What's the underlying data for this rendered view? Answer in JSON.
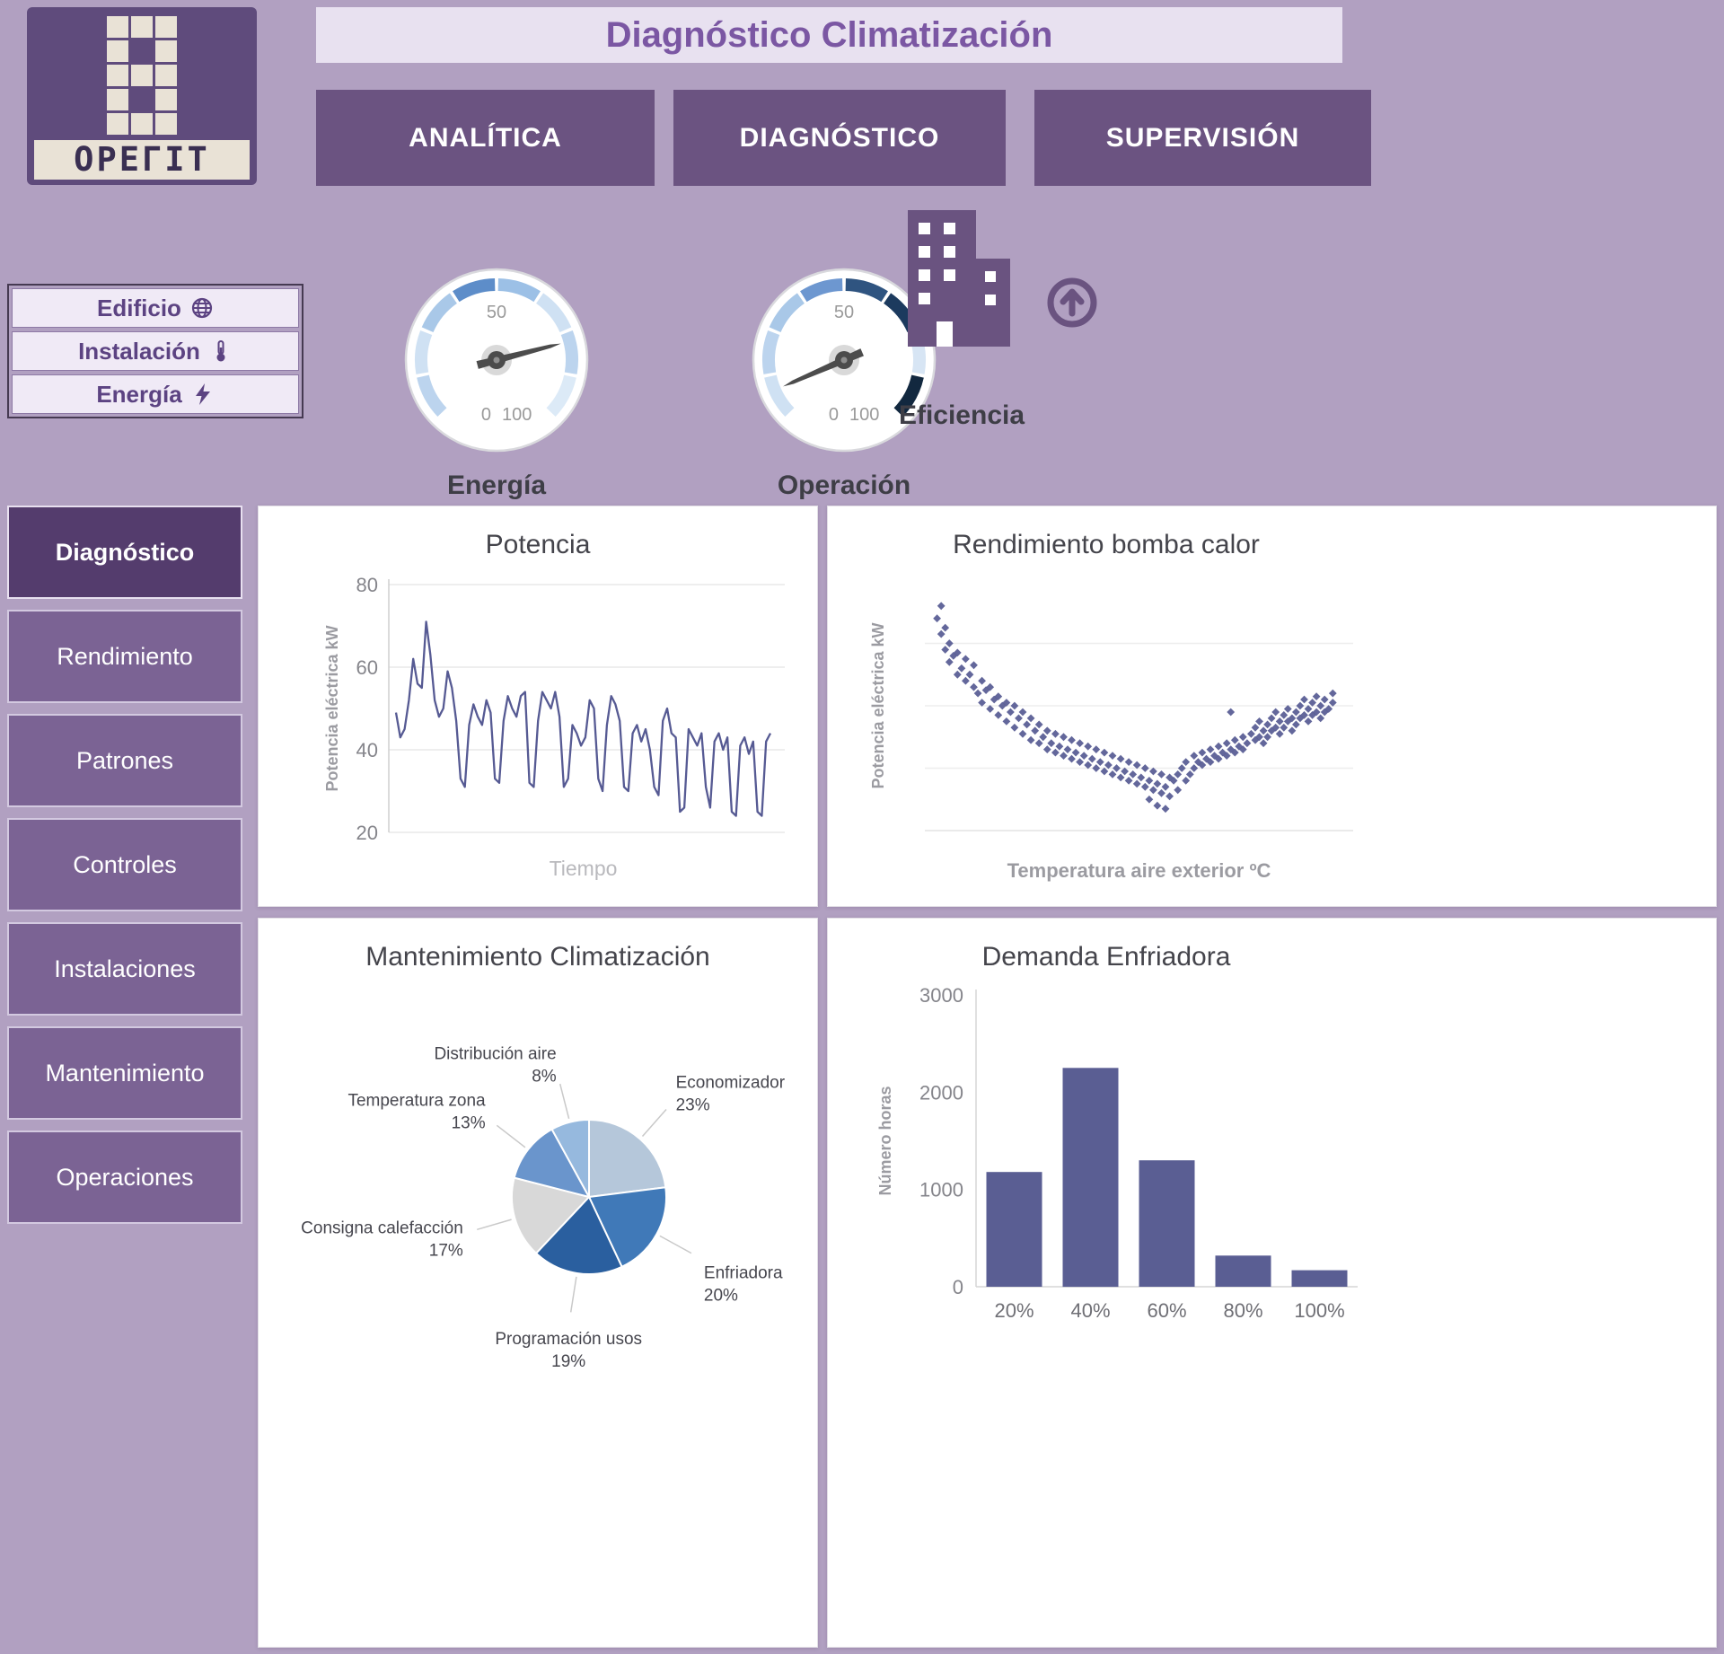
{
  "header": {
    "logo_text": "OPEΓIT",
    "title": "Diagnóstico Climatización",
    "tabs": [
      "ANALÍTICA",
      "DIAGNÓSTICO",
      "SUPERVISIÓN"
    ]
  },
  "filters": {
    "items": [
      {
        "label": "Edificio",
        "icon": "globe-icon"
      },
      {
        "label": "Instalación",
        "icon": "thermometer-icon"
      },
      {
        "label": "Energía",
        "icon": "bolt-icon"
      }
    ]
  },
  "gauges": [
    {
      "label": "Energía",
      "min": 0,
      "mid": 50,
      "max": 100,
      "value": 78,
      "segments": [
        "#bcd4ee",
        "#cfe1f3",
        "#a9c8e8",
        "#5d8dc9",
        "#9cc0e6",
        "#cfe1f3",
        "#bcd4ee",
        "#dceaf7"
      ]
    },
    {
      "label": "Operación",
      "min": 0,
      "mid": 50,
      "max": 100,
      "value": 8,
      "segments": [
        "#cfe1f3",
        "#bcd4ee",
        "#a9c8e8",
        "#6d97d0",
        "#2f5480",
        "#1c3a5e",
        "#d7e5f4",
        "#12283f"
      ]
    }
  ],
  "efficiency": {
    "label": "Eficiencia"
  },
  "sidebar": {
    "items": [
      {
        "label": "Diagnóstico",
        "active": true
      },
      {
        "label": "Rendimiento",
        "active": false
      },
      {
        "label": "Patrones",
        "active": false
      },
      {
        "label": "Controles",
        "active": false
      },
      {
        "label": "Instalaciones",
        "active": false
      },
      {
        "label": "Mantenimiento",
        "active": false
      },
      {
        "label": "Operaciones",
        "active": false
      }
    ]
  },
  "colors": {
    "accent_purple": "#6b5381",
    "background": "#b1a0c1",
    "series": "#565a93"
  },
  "chart_data": [
    {
      "id": "potencia",
      "type": "line",
      "title": "Potencia",
      "xlabel": "Tiempo",
      "ylabel": "Potencia eléctrica kW",
      "ylim": [
        20,
        80
      ],
      "yticks": [
        20,
        40,
        60,
        80
      ],
      "values": [
        49,
        43,
        45,
        52,
        62,
        56,
        55,
        71,
        63,
        52,
        48,
        50,
        59,
        55,
        47,
        33,
        31,
        46,
        51,
        48,
        46,
        52,
        49,
        33,
        32,
        47,
        53,
        50,
        48,
        53,
        54,
        32,
        31,
        47,
        54,
        52,
        50,
        54,
        48,
        31,
        33,
        46,
        44,
        41,
        43,
        52,
        50,
        33,
        30,
        46,
        53,
        51,
        47,
        31,
        30,
        44,
        46,
        42,
        45,
        40,
        31,
        29,
        47,
        50,
        44,
        43,
        25,
        26,
        45,
        43,
        41,
        44,
        31,
        26,
        42,
        44,
        40,
        43,
        25,
        24,
        41,
        43,
        39,
        42,
        25,
        24,
        42,
        44
      ]
    },
    {
      "id": "rendimiento",
      "type": "scatter",
      "title": "Rendimiento bomba calor",
      "xlabel": "Temperatura aire exterior ºC",
      "ylabel": "Potencia eléctrica kW",
      "xlim": [
        0,
        105
      ],
      "ylim": [
        20,
        100
      ],
      "ygrid": [
        40,
        60,
        80
      ],
      "points": [
        [
          3,
          88
        ],
        [
          4,
          92
        ],
        [
          4,
          83
        ],
        [
          5,
          78
        ],
        [
          5,
          85
        ],
        [
          6,
          74
        ],
        [
          6,
          80
        ],
        [
          7,
          76
        ],
        [
          8,
          70
        ],
        [
          8,
          77
        ],
        [
          9,
          72
        ],
        [
          10,
          68
        ],
        [
          10,
          75
        ],
        [
          11,
          70
        ],
        [
          12,
          66
        ],
        [
          12,
          73
        ],
        [
          13,
          64
        ],
        [
          14,
          68
        ],
        [
          14,
          61
        ],
        [
          15,
          65
        ],
        [
          16,
          59
        ],
        [
          16,
          66
        ],
        [
          17,
          62
        ],
        [
          18,
          57
        ],
        [
          18,
          63
        ],
        [
          19,
          60
        ],
        [
          20,
          55
        ],
        [
          20,
          61
        ],
        [
          21,
          58
        ],
        [
          22,
          53
        ],
        [
          22,
          60
        ],
        [
          23,
          56
        ],
        [
          24,
          51
        ],
        [
          24,
          58
        ],
        [
          25,
          54
        ],
        [
          26,
          49
        ],
        [
          26,
          56
        ],
        [
          27,
          52
        ],
        [
          28,
          48
        ],
        [
          28,
          54
        ],
        [
          29,
          50
        ],
        [
          30,
          46
        ],
        [
          30,
          52
        ],
        [
          31,
          48
        ],
        [
          32,
          45
        ],
        [
          32,
          51
        ],
        [
          33,
          47
        ],
        [
          34,
          44
        ],
        [
          34,
          50
        ],
        [
          35,
          46
        ],
        [
          36,
          43
        ],
        [
          36,
          49
        ],
        [
          37,
          45
        ],
        [
          38,
          42
        ],
        [
          38,
          48
        ],
        [
          39,
          44
        ],
        [
          40,
          41
        ],
        [
          40,
          47
        ],
        [
          41,
          43
        ],
        [
          42,
          40
        ],
        [
          42,
          46
        ],
        [
          43,
          42
        ],
        [
          44,
          39
        ],
        [
          44,
          45
        ],
        [
          45,
          41
        ],
        [
          46,
          38
        ],
        [
          46,
          44
        ],
        [
          47,
          40
        ],
        [
          48,
          37
        ],
        [
          48,
          43
        ],
        [
          49,
          39
        ],
        [
          50,
          36
        ],
        [
          50,
          42
        ],
        [
          51,
          38
        ],
        [
          52,
          35
        ],
        [
          52,
          41
        ],
        [
          53,
          37
        ],
        [
          54,
          34
        ],
        [
          54,
          40
        ],
        [
          55,
          36
        ],
        [
          55,
          30
        ],
        [
          56,
          33
        ],
        [
          56,
          39
        ],
        [
          57,
          35
        ],
        [
          57,
          28
        ],
        [
          58,
          32
        ],
        [
          58,
          38
        ],
        [
          59,
          34
        ],
        [
          59,
          27
        ],
        [
          60,
          31
        ],
        [
          60,
          37
        ],
        [
          61,
          36
        ],
        [
          62,
          38
        ],
        [
          62,
          33
        ],
        [
          63,
          40
        ],
        [
          64,
          36
        ],
        [
          64,
          42
        ],
        [
          65,
          38
        ],
        [
          66,
          44
        ],
        [
          66,
          40
        ],
        [
          67,
          42
        ],
        [
          68,
          45
        ],
        [
          68,
          41
        ],
        [
          69,
          43
        ],
        [
          70,
          46
        ],
        [
          70,
          42
        ],
        [
          71,
          44
        ],
        [
          72,
          47
        ],
        [
          72,
          43
        ],
        [
          73,
          45
        ],
        [
          74,
          48
        ],
        [
          74,
          44
        ],
        [
          75,
          46
        ],
        [
          75,
          58
        ],
        [
          76,
          49
        ],
        [
          76,
          45
        ],
        [
          77,
          47
        ],
        [
          78,
          50
        ],
        [
          78,
          46
        ],
        [
          79,
          48
        ],
        [
          80,
          51
        ],
        [
          81,
          49
        ],
        [
          81,
          53
        ],
        [
          82,
          50
        ],
        [
          82,
          55
        ],
        [
          83,
          52
        ],
        [
          83,
          48
        ],
        [
          84,
          54
        ],
        [
          84,
          50
        ],
        [
          85,
          56
        ],
        [
          85,
          52
        ],
        [
          86,
          53
        ],
        [
          86,
          58
        ],
        [
          87,
          55
        ],
        [
          87,
          51
        ],
        [
          88,
          57
        ],
        [
          88,
          53
        ],
        [
          89,
          55
        ],
        [
          89,
          59
        ],
        [
          90,
          56
        ],
        [
          90,
          52
        ],
        [
          91,
          58
        ],
        [
          91,
          54
        ],
        [
          92,
          60
        ],
        [
          92,
          56
        ],
        [
          93,
          57
        ],
        [
          93,
          62
        ],
        [
          94,
          59
        ],
        [
          94,
          55
        ],
        [
          95,
          61
        ],
        [
          95,
          57
        ],
        [
          96,
          58
        ],
        [
          96,
          63
        ],
        [
          97,
          60
        ],
        [
          97,
          56
        ],
        [
          98,
          62
        ],
        [
          98,
          58
        ],
        [
          99,
          59
        ],
        [
          100,
          61
        ],
        [
          100,
          64
        ]
      ]
    },
    {
      "id": "mantenimiento",
      "type": "pie",
      "title": "Mantenimiento Climatización",
      "slices": [
        {
          "label": "Economizador",
          "value": 23,
          "color": "#b5c7da"
        },
        {
          "label": "Enfriadora",
          "value": 20,
          "color": "#4079b8"
        },
        {
          "label": "Programación usos",
          "value": 19,
          "color": "#2a5f9f"
        },
        {
          "label": "Consigna calefacción",
          "value": 17,
          "color": "#d8d8d8"
        },
        {
          "label": "Temperatura zona",
          "value": 13,
          "color": "#6a95cc"
        },
        {
          "label": "Distribución aire",
          "value": 8,
          "color": "#96b9de"
        }
      ]
    },
    {
      "id": "demanda",
      "type": "bar",
      "title": "Demanda Enfriadora",
      "ylabel": "Número horas",
      "categories": [
        "20%",
        "40%",
        "60%",
        "80%",
        "100%"
      ],
      "values": [
        1180,
        2250,
        1300,
        320,
        170
      ],
      "ylim": [
        0,
        3000
      ],
      "yticks": [
        0,
        1000,
        2000,
        3000
      ]
    }
  ]
}
